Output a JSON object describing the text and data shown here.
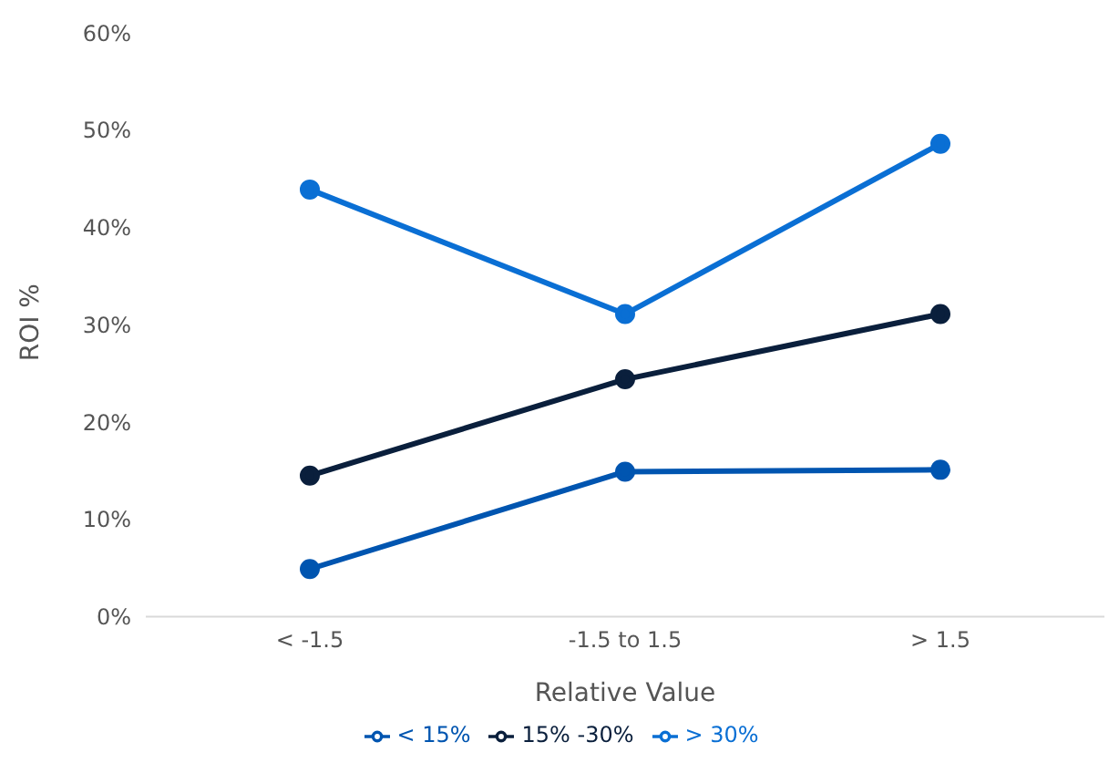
{
  "chart_data": {
    "type": "line",
    "xlabel": "Relative Value",
    "ylabel": "ROI %",
    "categories": [
      "< -1.5",
      "-1.5 to 1.5",
      "> 1.5"
    ],
    "series": [
      {
        "name": "< 15%",
        "color": "#0055b0",
        "values": [
          4.9,
          14.9,
          15.1
        ]
      },
      {
        "name": "15% -30%",
        "color": "#0a1f3c",
        "values": [
          14.5,
          24.4,
          31.1
        ]
      },
      {
        "name": "> 30%",
        "color": "#0a6fd4",
        "values": [
          43.9,
          31.1,
          48.6
        ]
      }
    ],
    "ylim": [
      0,
      60
    ],
    "yticks": [
      {
        "value": 0,
        "label": "0%"
      },
      {
        "value": 10,
        "label": "10%"
      },
      {
        "value": 20,
        "label": "20%"
      },
      {
        "value": 30,
        "label": "30%"
      },
      {
        "value": 40,
        "label": "40%"
      },
      {
        "value": 50,
        "label": "50%"
      },
      {
        "value": 60,
        "label": "60%"
      }
    ],
    "grid": false,
    "legend": "bottom",
    "marker": "circle",
    "line_style": "solid"
  }
}
